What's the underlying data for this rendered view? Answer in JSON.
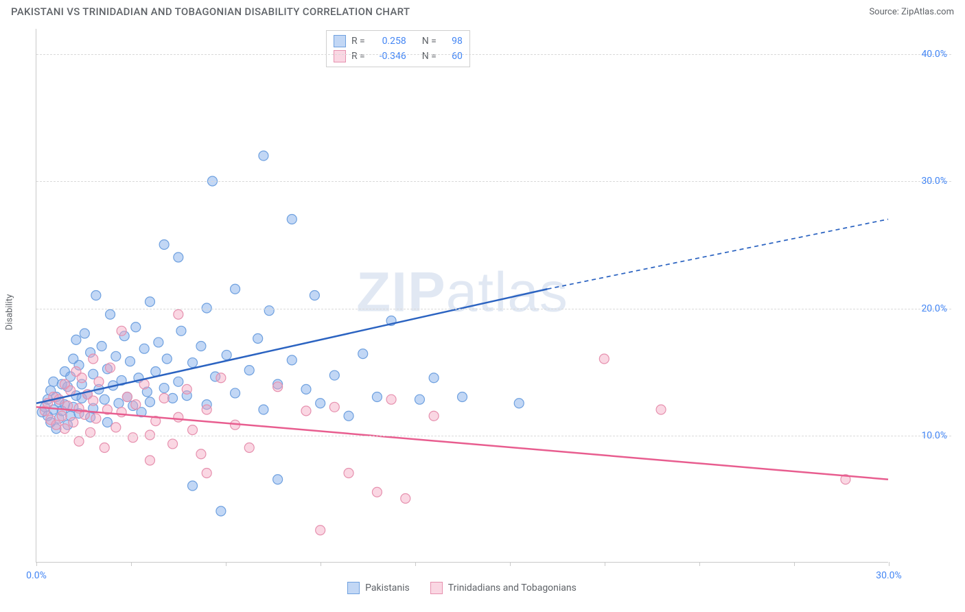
{
  "title": "PAKISTANI VS TRINIDADIAN AND TOBAGONIAN DISABILITY CORRELATION CHART",
  "source_label": "Source:",
  "source_name": "ZipAtlas.com",
  "y_axis_label": "Disability",
  "watermark_text": "ZIPatlas",
  "chart": {
    "type": "scatter",
    "background_color": "#ffffff",
    "grid_color": "#d9d9d9",
    "axis_color": "#c9c9c9",
    "tick_label_color": "#4285f4",
    "label_fontsize": 13,
    "tick_fontsize": 14,
    "xlim": [
      0,
      30
    ],
    "ylim": [
      0,
      42
    ],
    "x_ticks": [
      0,
      3.33,
      6.67,
      10,
      13.33,
      16.67,
      20,
      23.33,
      26.67,
      30
    ],
    "x_tick_labels": {
      "0": "0.0%",
      "30": "30.0%"
    },
    "y_ticks": [
      10,
      20,
      30,
      40
    ],
    "y_tick_labels": {
      "10": "10.0%",
      "20": "20.0%",
      "30": "30.0%",
      "40": "40.0%"
    },
    "marker_radius": 7,
    "marker_stroke_width": 1.2,
    "line_width": 2.5,
    "series": [
      {
        "name": "Pakistanis",
        "color_fill": "rgba(120,167,232,0.45)",
        "color_stroke": "#6ea0df",
        "line_color": "#2b63c1",
        "R": "0.258",
        "N": "98",
        "regression": {
          "x1": 0,
          "y1": 12.5,
          "x2": 18,
          "y2": 21.5,
          "extend_x": 30,
          "extend_y": 27.0,
          "dashed_extend": true
        },
        "points": [
          [
            0.2,
            11.8
          ],
          [
            0.3,
            12.2
          ],
          [
            0.4,
            11.5
          ],
          [
            0.4,
            12.8
          ],
          [
            0.5,
            11.0
          ],
          [
            0.5,
            13.5
          ],
          [
            0.6,
            12.0
          ],
          [
            0.6,
            14.2
          ],
          [
            0.7,
            10.5
          ],
          [
            0.7,
            13.0
          ],
          [
            0.8,
            11.3
          ],
          [
            0.8,
            12.6
          ],
          [
            0.9,
            14.0
          ],
          [
            0.9,
            11.9
          ],
          [
            1.0,
            12.4
          ],
          [
            1.0,
            15.0
          ],
          [
            1.1,
            10.8
          ],
          [
            1.1,
            13.8
          ],
          [
            1.2,
            11.5
          ],
          [
            1.2,
            14.6
          ],
          [
            1.3,
            16.0
          ],
          [
            1.3,
            12.2
          ],
          [
            1.4,
            13.1
          ],
          [
            1.4,
            17.5
          ],
          [
            1.5,
            11.7
          ],
          [
            1.5,
            15.5
          ],
          [
            1.6,
            14.0
          ],
          [
            1.6,
            12.9
          ],
          [
            1.7,
            18.0
          ],
          [
            1.8,
            13.2
          ],
          [
            1.9,
            16.5
          ],
          [
            1.9,
            11.4
          ],
          [
            2.0,
            14.8
          ],
          [
            2.0,
            12.1
          ],
          [
            2.1,
            21.0
          ],
          [
            2.2,
            13.6
          ],
          [
            2.3,
            17.0
          ],
          [
            2.4,
            12.8
          ],
          [
            2.5,
            15.2
          ],
          [
            2.5,
            11.0
          ],
          [
            2.6,
            19.5
          ],
          [
            2.7,
            13.9
          ],
          [
            2.8,
            16.2
          ],
          [
            2.9,
            12.5
          ],
          [
            3.0,
            14.3
          ],
          [
            3.1,
            17.8
          ],
          [
            3.2,
            13.0
          ],
          [
            3.3,
            15.8
          ],
          [
            3.4,
            12.3
          ],
          [
            3.5,
            18.5
          ],
          [
            3.6,
            14.5
          ],
          [
            3.7,
            11.8
          ],
          [
            3.8,
            16.8
          ],
          [
            3.9,
            13.4
          ],
          [
            4.0,
            20.5
          ],
          [
            4.0,
            12.6
          ],
          [
            4.2,
            15.0
          ],
          [
            4.3,
            17.3
          ],
          [
            4.5,
            13.7
          ],
          [
            4.5,
            25.0
          ],
          [
            4.6,
            16.0
          ],
          [
            4.8,
            12.9
          ],
          [
            5.0,
            14.2
          ],
          [
            5.0,
            24.0
          ],
          [
            5.1,
            18.2
          ],
          [
            5.3,
            13.1
          ],
          [
            5.5,
            15.7
          ],
          [
            5.5,
            6.0
          ],
          [
            5.8,
            17.0
          ],
          [
            6.0,
            12.4
          ],
          [
            6.0,
            20.0
          ],
          [
            6.2,
            30.0
          ],
          [
            6.3,
            14.6
          ],
          [
            6.5,
            4.0
          ],
          [
            6.7,
            16.3
          ],
          [
            7.0,
            13.3
          ],
          [
            7.0,
            21.5
          ],
          [
            7.5,
            15.1
          ],
          [
            7.8,
            17.6
          ],
          [
            8.0,
            32.0
          ],
          [
            8.0,
            12.0
          ],
          [
            8.2,
            19.8
          ],
          [
            8.5,
            6.5
          ],
          [
            8.5,
            14.0
          ],
          [
            9.0,
            15.9
          ],
          [
            9.0,
            27.0
          ],
          [
            9.5,
            13.6
          ],
          [
            9.8,
            21.0
          ],
          [
            10.0,
            12.5
          ],
          [
            10.5,
            14.7
          ],
          [
            11.0,
            11.5
          ],
          [
            11.5,
            16.4
          ],
          [
            12.0,
            13.0
          ],
          [
            12.5,
            19.0
          ],
          [
            13.5,
            12.8
          ],
          [
            14.0,
            14.5
          ],
          [
            15.0,
            13.0
          ],
          [
            17.0,
            12.5
          ]
        ]
      },
      {
        "name": "Trinidadians and Tobagonians",
        "color_fill": "rgba(244,166,193,0.45)",
        "color_stroke": "#e690ae",
        "line_color": "#e85d8f",
        "R": "-0.346",
        "N": "60",
        "regression": {
          "x1": 0,
          "y1": 12.2,
          "x2": 30,
          "y2": 6.5,
          "extend_x": 30,
          "extend_y": 6.5,
          "dashed_extend": false
        },
        "points": [
          [
            0.3,
            11.9
          ],
          [
            0.4,
            12.5
          ],
          [
            0.5,
            11.2
          ],
          [
            0.6,
            13.0
          ],
          [
            0.7,
            10.8
          ],
          [
            0.8,
            12.8
          ],
          [
            0.9,
            11.5
          ],
          [
            1.0,
            14.0
          ],
          [
            1.0,
            10.5
          ],
          [
            1.1,
            12.3
          ],
          [
            1.2,
            13.5
          ],
          [
            1.3,
            11.0
          ],
          [
            1.4,
            15.0
          ],
          [
            1.5,
            12.1
          ],
          [
            1.5,
            9.5
          ],
          [
            1.6,
            14.5
          ],
          [
            1.7,
            11.6
          ],
          [
            1.8,
            13.2
          ],
          [
            1.9,
            10.2
          ],
          [
            2.0,
            12.7
          ],
          [
            2.0,
            16.0
          ],
          [
            2.1,
            11.3
          ],
          [
            2.2,
            14.2
          ],
          [
            2.4,
            9.0
          ],
          [
            2.5,
            12.0
          ],
          [
            2.6,
            15.3
          ],
          [
            2.8,
            10.6
          ],
          [
            3.0,
            11.8
          ],
          [
            3.0,
            18.2
          ],
          [
            3.2,
            13.0
          ],
          [
            3.4,
            9.8
          ],
          [
            3.5,
            12.4
          ],
          [
            3.8,
            14.0
          ],
          [
            4.0,
            10.0
          ],
          [
            4.0,
            8.0
          ],
          [
            4.2,
            11.1
          ],
          [
            4.5,
            12.9
          ],
          [
            4.8,
            9.3
          ],
          [
            5.0,
            19.5
          ],
          [
            5.0,
            11.4
          ],
          [
            5.3,
            13.6
          ],
          [
            5.5,
            10.4
          ],
          [
            5.8,
            8.5
          ],
          [
            6.0,
            12.0
          ],
          [
            6.0,
            7.0
          ],
          [
            6.5,
            14.5
          ],
          [
            7.0,
            10.8
          ],
          [
            7.5,
            9.0
          ],
          [
            8.5,
            13.8
          ],
          [
            9.5,
            11.9
          ],
          [
            10.0,
            2.5
          ],
          [
            10.5,
            12.2
          ],
          [
            11.0,
            7.0
          ],
          [
            12.0,
            5.5
          ],
          [
            12.5,
            12.8
          ],
          [
            13.0,
            5.0
          ],
          [
            14.0,
            11.5
          ],
          [
            20.0,
            16.0
          ],
          [
            22.0,
            12.0
          ],
          [
            28.5,
            6.5
          ]
        ]
      }
    ]
  },
  "stats_box": {
    "rows": [
      {
        "series_index": 0,
        "r_label": "R =",
        "n_label": "N ="
      },
      {
        "series_index": 1,
        "r_label": "R =",
        "n_label": "N ="
      }
    ]
  },
  "bottom_legend": {
    "items": [
      {
        "series_index": 0
      },
      {
        "series_index": 1
      }
    ]
  }
}
